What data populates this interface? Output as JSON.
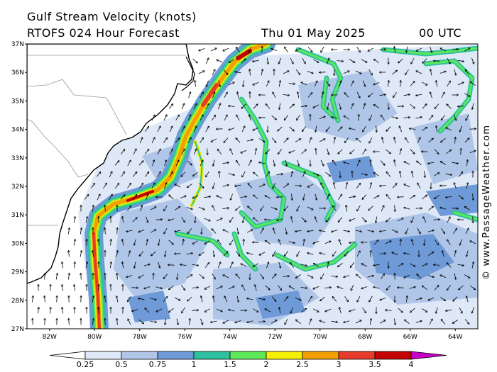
{
  "header": {
    "title": "Gulf Stream Velocity (knots)",
    "model": "RTOFS 024 Hour Forecast",
    "date": "Thu 01 May 2025",
    "time": "00 UTC"
  },
  "axes": {
    "lat_labels": [
      "37N",
      "36N",
      "35N",
      "34N",
      "33N",
      "32N",
      "31N",
      "30N",
      "29N",
      "28N",
      "27N"
    ],
    "lon_labels": [
      "82W",
      "80W",
      "78W",
      "76W",
      "74W",
      "72W",
      "70W",
      "68W",
      "66W",
      "64W"
    ],
    "lat_range": [
      27,
      37
    ],
    "lon_range": [
      -83,
      -63
    ]
  },
  "legend": {
    "ticks": [
      "0.25",
      "0.5",
      "0.75",
      "1",
      "1.5",
      "2",
      "2.5",
      "3",
      "3.5",
      "4"
    ],
    "colors": [
      "#ffffff",
      "#dfe8f6",
      "#b0c6e8",
      "#6f9ad8",
      "#2ec0a0",
      "#5fe858",
      "#f4f000",
      "#f2a000",
      "#e83a2a",
      "#c40000",
      "#c800c8"
    ]
  },
  "credit": "© www.PassageWeather.com",
  "colors": {
    "land": "#ffffff",
    "weak": "#dfe8f6",
    "light_blue": "#b0c6e8",
    "blue": "#6f9ad8",
    "teal": "#2ec0a0",
    "green": "#5fe858",
    "yellow": "#f4f000",
    "orange": "#f2a000",
    "red": "#e83a2a",
    "darkred": "#c40000"
  }
}
